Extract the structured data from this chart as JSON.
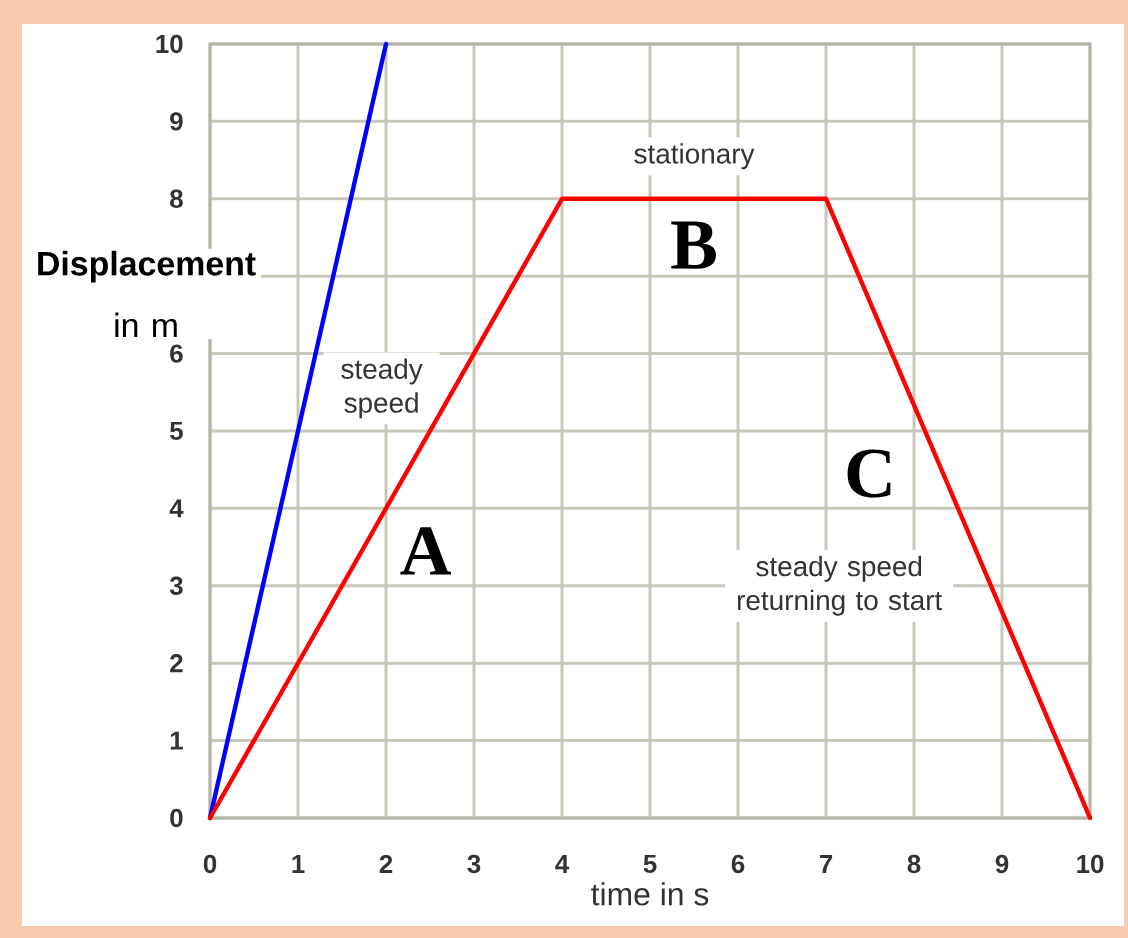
{
  "chart_data": {
    "type": "line",
    "xlabel": "time in s",
    "ylabel": "**Displacement** in m",
    "xlim": [
      0,
      10
    ],
    "ylim": [
      0,
      10
    ],
    "xticks": [
      0,
      1,
      2,
      3,
      4,
      5,
      6,
      7,
      8,
      9,
      10
    ],
    "yticks": [
      0,
      1,
      2,
      3,
      4,
      5,
      6,
      {
        "value": 7,
        "label": null
      },
      8,
      9,
      10
    ],
    "grid": true,
    "series": [
      {
        "color": "#0000ff",
        "x": [
          0,
          2
        ],
        "values": [
          0,
          10
        ]
      },
      {
        "color": "#ff0000",
        "x": [
          0,
          4,
          7,
          10
        ],
        "values": [
          0,
          8,
          8,
          0
        ]
      }
    ],
    "annotations": [
      "stationary",
      "B",
      "steady speed",
      "A",
      "C",
      "steady speed returning to start"
    ]
  }
}
